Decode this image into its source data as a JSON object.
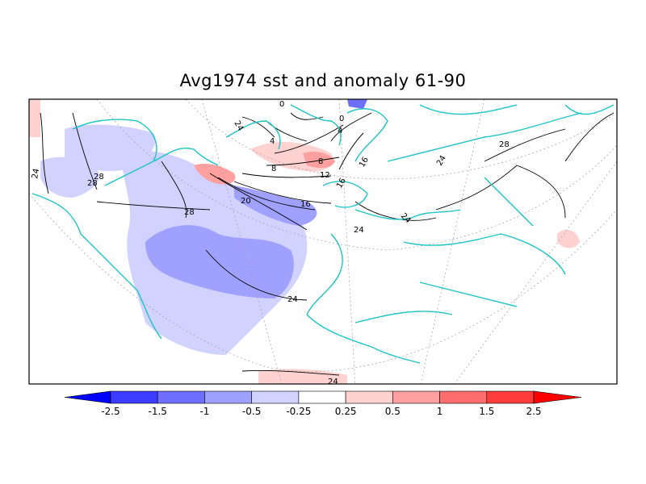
{
  "title": "Avg1974 sst and anomaly 61-90",
  "contour_labels": [
    "24",
    "28",
    "28",
    "28",
    "20",
    "16",
    "12",
    "8",
    "8",
    "4",
    "4",
    "0",
    "0",
    "24",
    "16",
    "16",
    "24",
    "24",
    "24",
    "24",
    "28",
    "24"
  ],
  "colorbar": {
    "labels": [
      "-2.5",
      "-1.5",
      "-1",
      "-0.5",
      "-0.25",
      "0.25",
      "0.5",
      "1",
      "1.5",
      "2.5"
    ],
    "colors": [
      "#0000ff",
      "#3c3cff",
      "#6e6eff",
      "#a0a0ff",
      "#d2d2ff",
      "#ffffff",
      "#ffd2d2",
      "#ffa0a0",
      "#ff6e6e",
      "#ff3c3c",
      "#ff0000"
    ]
  },
  "colors": {
    "coastline": "#1fc4c4",
    "contour": "#000000",
    "grid": "#a0a0a0"
  },
  "icons": [
    "colorbar-left-arrow-icon",
    "colorbar-right-arrow-icon"
  ]
}
